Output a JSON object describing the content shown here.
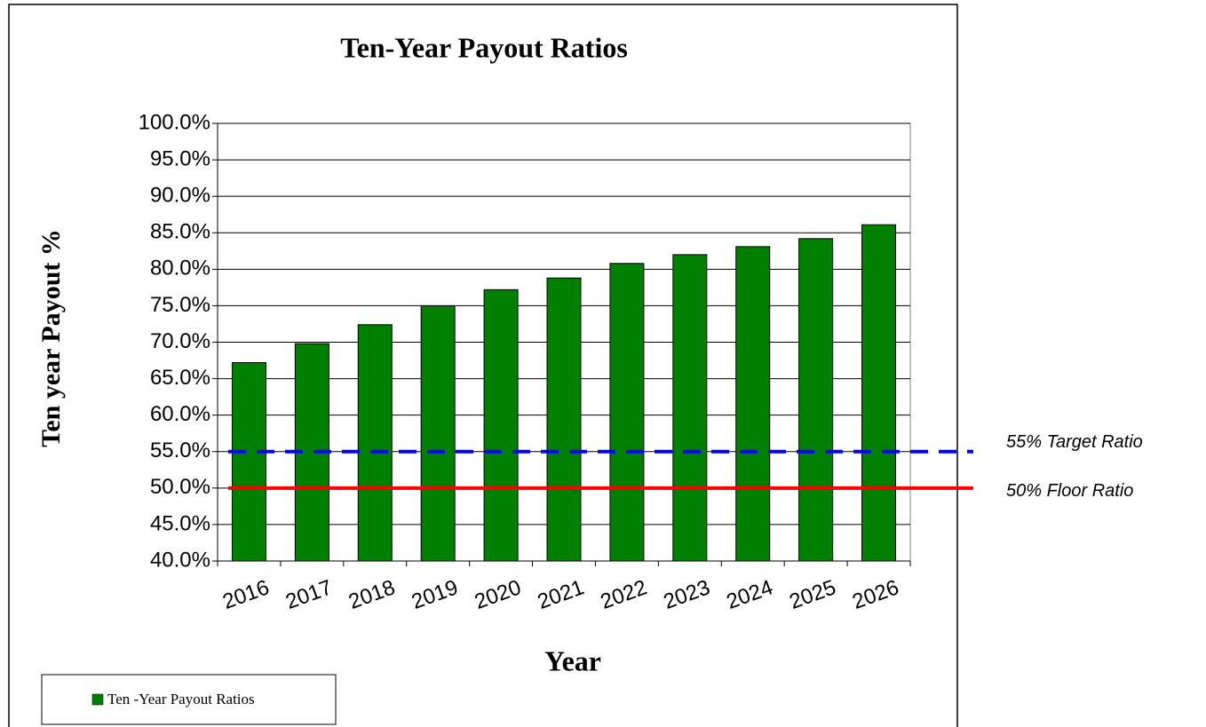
{
  "chart_data": {
    "type": "bar",
    "title": "Ten-Year Payout Ratios",
    "x_label": "Year",
    "y_label": "Ten year Payout  %",
    "categories": [
      "2016",
      "2017",
      "2018",
      "2019",
      "2020",
      "2021",
      "2022",
      "2023",
      "2024",
      "2025",
      "2026"
    ],
    "series": [
      {
        "name": "Ten -Year Payout Ratios",
        "color": "#008000",
        "values": [
          67.2,
          69.8,
          72.4,
          75.0,
          77.2,
          78.8,
          80.8,
          82.0,
          83.1,
          84.2,
          86.1
        ]
      }
    ],
    "reference_lines": [
      {
        "label": "55% Target Ratio",
        "value": 55,
        "color": "#0000ff",
        "style": "dashed"
      },
      {
        "label": "50% Floor Ratio",
        "value": 50,
        "color": "#ff0000",
        "style": "solid"
      }
    ],
    "ylim": [
      40,
      100
    ],
    "yticks": [
      {
        "value": 40,
        "label": "40.0%"
      },
      {
        "value": 45,
        "label": "45.0%"
      },
      {
        "value": 50,
        "label": "50.0%"
      },
      {
        "value": 55,
        "label": "55.0%"
      },
      {
        "value": 60,
        "label": "60.0%"
      },
      {
        "value": 65,
        "label": "65.0%"
      },
      {
        "value": 70,
        "label": "70.0%"
      },
      {
        "value": 75,
        "label": "75.0%"
      },
      {
        "value": 80,
        "label": "80.0%"
      },
      {
        "value": 85,
        "label": "85.0%"
      },
      {
        "value": 90,
        "label": "90.0%"
      },
      {
        "value": 95,
        "label": "95.0%"
      },
      {
        "value": 100,
        "label": "100.0%"
      }
    ],
    "grid": true,
    "legend": "bottom-left"
  }
}
